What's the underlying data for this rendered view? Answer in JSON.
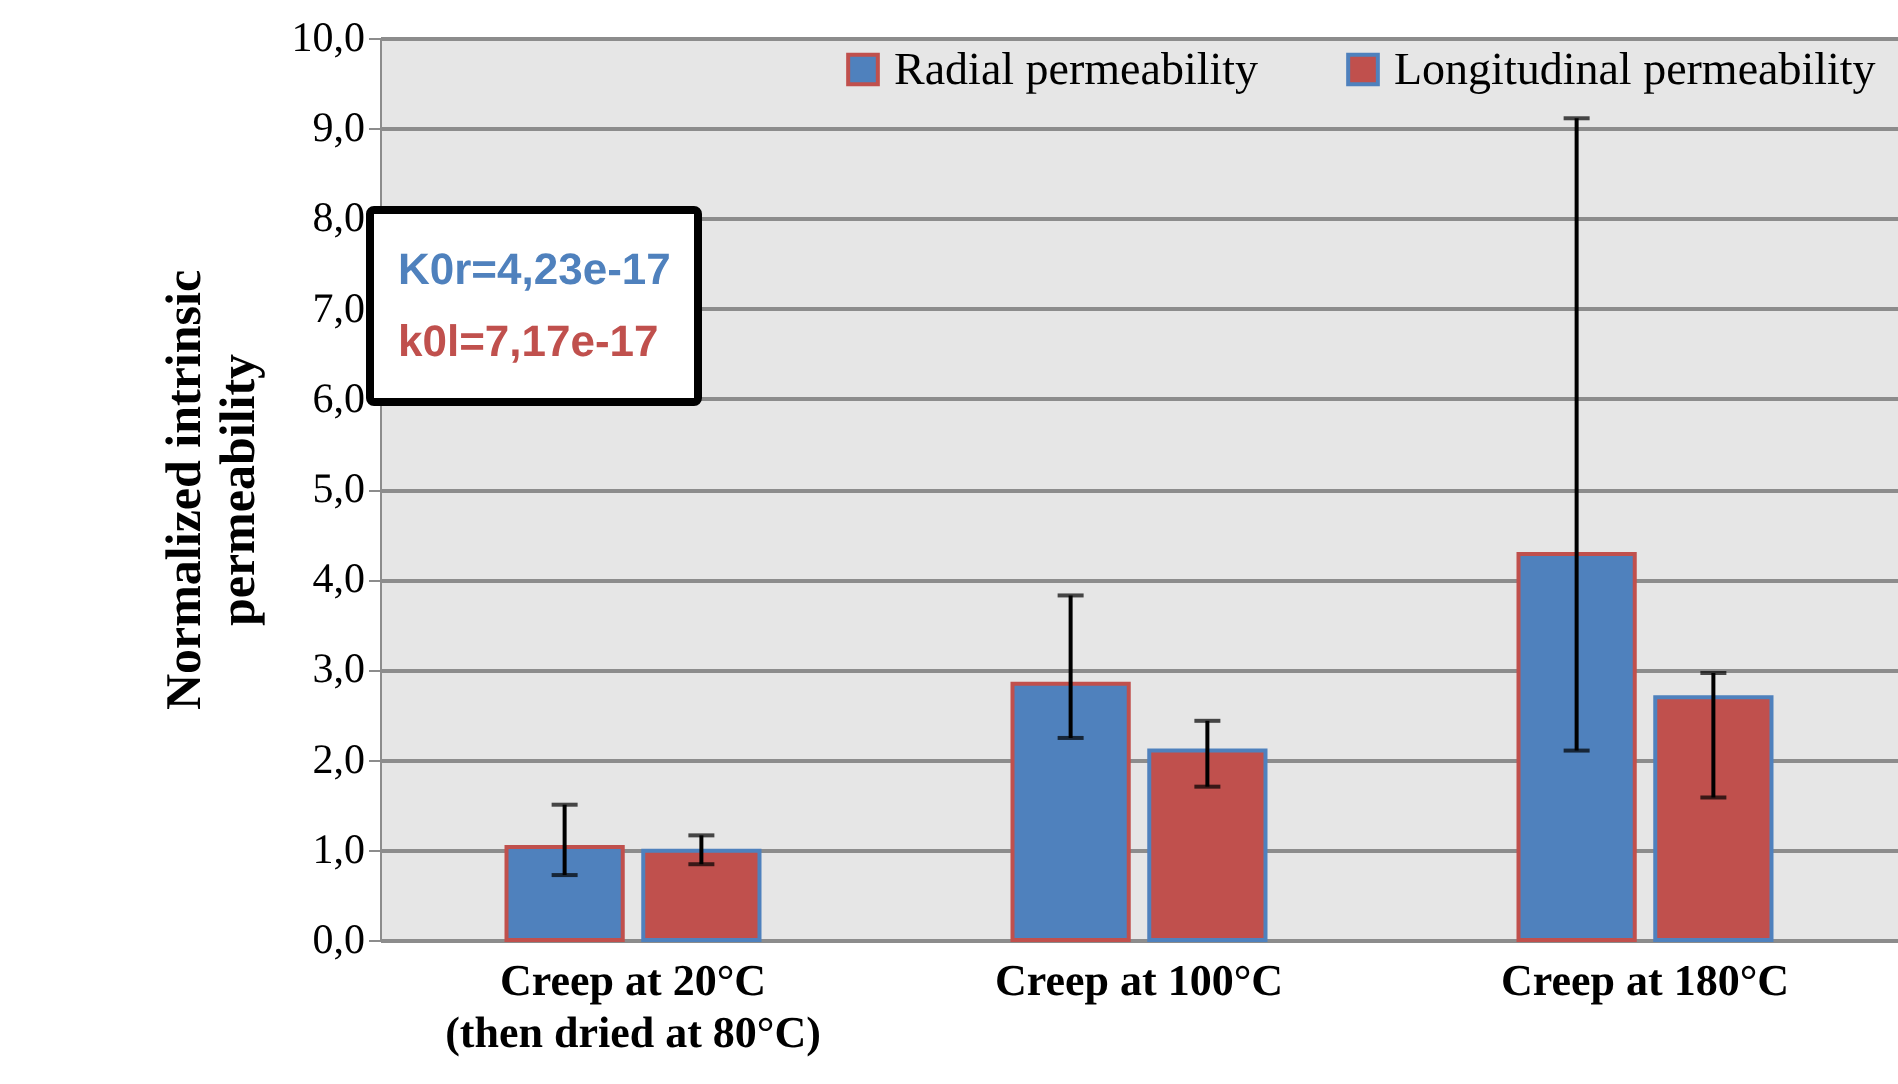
{
  "chart_data": {
    "type": "bar",
    "ylabel": "Normalized intrinsic permeability",
    "categories": [
      "Creep at 20°C (then dried at 80°C)",
      "Creep at 100°C",
      "Creep at 180°C"
    ],
    "series": [
      {
        "name": "Radial permeability",
        "color": "#4f81bd",
        "values": [
          1.03,
          2.84,
          4.28
        ],
        "errors": [
          [
            0.72,
            1.5
          ],
          [
            2.24,
            3.82
          ],
          [
            2.1,
            9.11
          ]
        ]
      },
      {
        "name": "Longitudinal permeability",
        "color": "#c0504d",
        "values": [
          0.99,
          2.1,
          2.69
        ],
        "errors": [
          [
            0.84,
            1.16
          ],
          [
            1.7,
            2.43
          ],
          [
            1.58,
            2.96
          ]
        ]
      }
    ],
    "ylim": [
      0,
      10
    ],
    "yticks": [
      {
        "value": 0,
        "label": "0,0"
      },
      {
        "value": 1,
        "label": "1,0"
      },
      {
        "value": 2,
        "label": "2,0"
      },
      {
        "value": 3,
        "label": "3,0"
      },
      {
        "value": 4,
        "label": "4,0"
      },
      {
        "value": 5,
        "label": "5,0"
      },
      {
        "value": 6,
        "label": "6,0"
      },
      {
        "value": 7,
        "label": "7,0"
      },
      {
        "value": 8,
        "label": "8,0"
      },
      {
        "value": 9,
        "label": "9,0"
      },
      {
        "value": 10,
        "label": "10,0"
      }
    ],
    "grid": "y",
    "legend": "top",
    "annotations": [
      "K0r=4,23e-17",
      "k0l=7,17e-17"
    ]
  }
}
